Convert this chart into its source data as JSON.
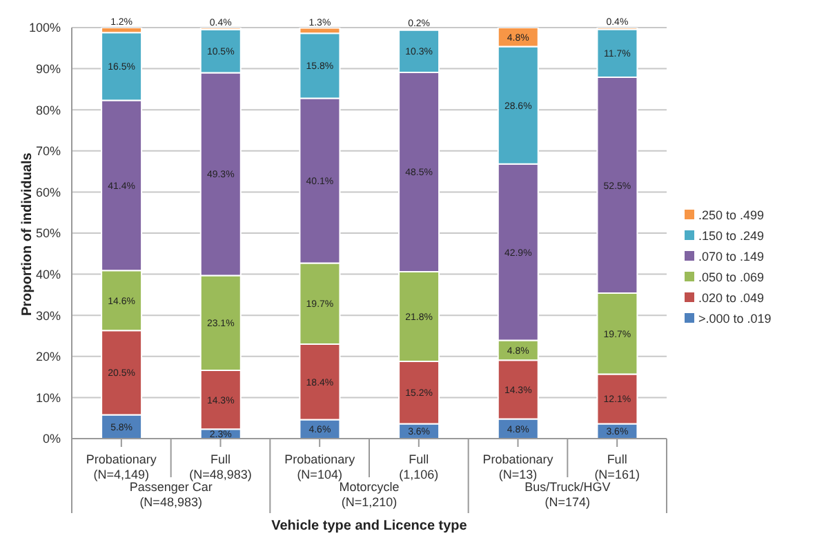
{
  "chart_data": {
    "type": "bar",
    "stacked": true,
    "xlabel": "Vehicle type and Licence type",
    "ylabel": "Proportion of individuals",
    "categories": [
      "Probationary\n(N=4,149)",
      "Full\n(N=48,983)",
      "Probationary\n(N=104)",
      "Full\n(1,106)",
      "Probationary\n(N=13)",
      "Full\n(N=161)"
    ],
    "annotations": [
      "Passenger Car\n(N=48,983)",
      "Motorcycle\n(N=1,210)",
      "Bus/Truck/HGV\n(N=174)"
    ],
    "ylim": [
      0,
      100
    ],
    "yticks": [
      {
        "value": 0,
        "label": "0%"
      },
      {
        "value": 10,
        "label": "10%"
      },
      {
        "value": 20,
        "label": "20%"
      },
      {
        "value": 30,
        "label": "30%"
      },
      {
        "value": 40,
        "label": "40%"
      },
      {
        "value": 50,
        "label": "50%"
      },
      {
        "value": 60,
        "label": "60%"
      },
      {
        "value": 70,
        "label": "70%"
      },
      {
        "value": 80,
        "label": "80%"
      },
      {
        "value": 90,
        "label": "90%"
      },
      {
        "value": 100,
        "label": "100%"
      }
    ],
    "grid": "y",
    "legend": "right",
    "series": [
      {
        "name": ">.000 to .019",
        "color": "#4f81bd",
        "values": [
          5.8,
          2.3,
          4.6,
          3.6,
          4.8,
          3.6
        ],
        "value_labels": [
          "5.8%",
          "2.3%",
          "4.6%",
          "3.6%",
          "4.8%",
          "3.6%"
        ]
      },
      {
        "name": ".020 to .049",
        "color": "#c0504d",
        "values": [
          20.5,
          14.3,
          18.4,
          15.2,
          14.3,
          12.1
        ],
        "value_labels": [
          "20.5%",
          "14.3%",
          "18.4%",
          "15.2%",
          "14.3%",
          "12.1%"
        ]
      },
      {
        "name": ".050 to .069",
        "color": "#9bbb59",
        "values": [
          14.6,
          23.1,
          19.7,
          21.8,
          4.8,
          19.7
        ],
        "value_labels": [
          "14.6%",
          "23.1%",
          "19.7%",
          "21.8%",
          "4.8%",
          "19.7%"
        ]
      },
      {
        "name": ".070 to .149",
        "color": "#8064a2",
        "values": [
          41.4,
          49.3,
          40.1,
          48.5,
          42.9,
          52.5
        ],
        "value_labels": [
          "41.4%",
          "49.3%",
          "40.1%",
          "48.5%",
          "42.9%",
          "52.5%"
        ]
      },
      {
        "name": ".150 to .249",
        "color": "#4bacc6",
        "values": [
          16.5,
          10.5,
          15.8,
          10.3,
          28.6,
          11.7
        ],
        "value_labels": [
          "16.5%",
          "10.5%",
          "15.8%",
          "10.3%",
          "28.6%",
          "11.7%"
        ]
      },
      {
        "name": ".250 to .499",
        "color": "#f79646",
        "values": [
          1.2,
          0.4,
          1.3,
          0.2,
          4.8,
          0.4
        ],
        "value_labels": [
          "1.2%",
          "0.4%",
          "1.3%",
          "0.2%",
          "4.8%",
          "0.4%"
        ]
      }
    ]
  }
}
